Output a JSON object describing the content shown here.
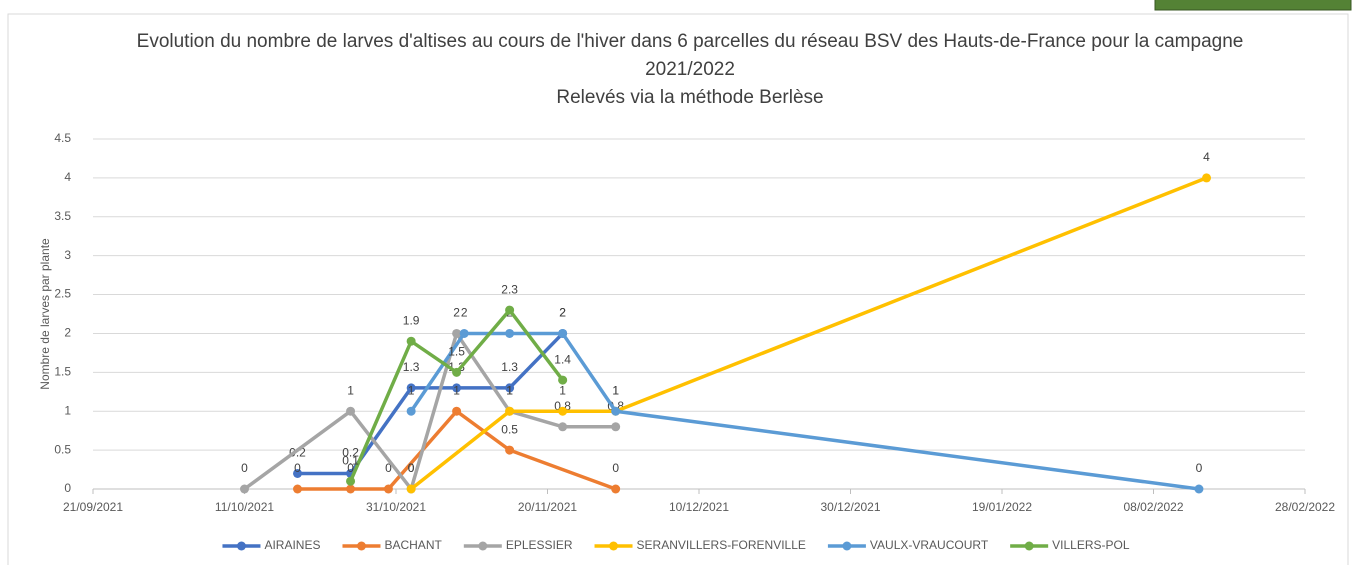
{
  "chart_data": {
    "type": "line",
    "title": "Evolution du nombre de larves d'altises au cours de l'hiver dans 6 parcelles du réseau BSV des Hauts-de-France pour la campagne 2021/2022",
    "subtitle": "Relevés via la méthode Berlèse",
    "y_label": "Nombre de larves par plante",
    "xlim": [
      "21/09/2021",
      "28/02/2022"
    ],
    "xticks": [
      "21/09/2021",
      "11/10/2021",
      "31/10/2021",
      "20/11/2021",
      "10/12/2021",
      "30/12/2021",
      "19/01/2022",
      "08/02/2022",
      "28/02/2022"
    ],
    "ylim": [
      0,
      4.5
    ],
    "yticks": [
      0,
      0.5,
      1,
      1.5,
      2,
      2.5,
      3,
      3.5,
      4,
      4.5
    ],
    "grid": true,
    "legend": "bottom",
    "series": [
      {
        "name": "AIRAINES",
        "color": "#4472c4",
        "x": [
          "18/10/2021",
          "25/10/2021",
          "02/11/2021",
          "08/11/2021",
          "15/11/2021",
          "22/11/2021"
        ],
        "values": [
          0.2,
          0.2,
          1.3,
          1.3,
          1.3,
          2
        ]
      },
      {
        "name": "BACHANT",
        "color": "#ed7d31",
        "x": [
          "18/10/2021",
          "25/10/2021",
          "30/10/2021",
          "08/11/2021",
          "15/11/2021",
          "29/11/2021"
        ],
        "values": [
          0,
          0,
          0,
          1,
          0.5,
          0
        ]
      },
      {
        "name": "EPLESSIER",
        "color": "#a5a5a5",
        "x": [
          "11/10/2021",
          "25/10/2021",
          "02/11/2021",
          "08/11/2021",
          "15/11/2021",
          "22/11/2021",
          "29/11/2021"
        ],
        "values": [
          0,
          1,
          0,
          2,
          1,
          0.8,
          0.8
        ]
      },
      {
        "name": "SERANVILLERS-FORENVILLE",
        "color": "#ffc000",
        "x": [
          "02/11/2021",
          "15/11/2021",
          "22/11/2021",
          "29/11/2021",
          "15/02/2022"
        ],
        "values": [
          0,
          1,
          1,
          1,
          4
        ]
      },
      {
        "name": "VAULX-VRAUCOURT",
        "color": "#5b9bd5",
        "x": [
          "02/11/2021",
          "09/11/2021",
          "15/11/2021",
          "22/11/2021",
          "29/11/2021",
          "14/02/2022"
        ],
        "values": [
          1,
          2,
          2,
          2,
          1,
          0
        ]
      },
      {
        "name": "VILLERS-POL",
        "color": "#70ad47",
        "x": [
          "25/10/2021",
          "02/11/2021",
          "08/11/2021",
          "15/11/2021",
          "22/11/2021"
        ],
        "values": [
          0.1,
          1.9,
          1.5,
          2.3,
          1.4
        ]
      }
    ]
  }
}
